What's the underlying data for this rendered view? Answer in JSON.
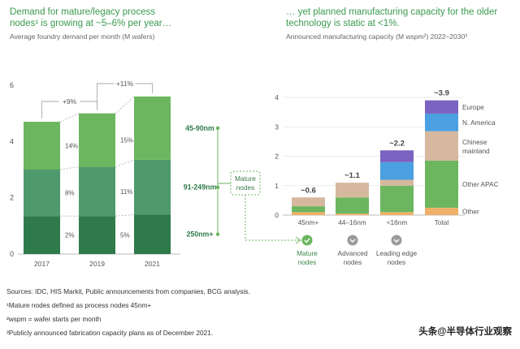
{
  "left_title_line1": "Demand for mature/legacy process",
  "left_title_line2": "nodes¹ is growing at ~5–6% per year…",
  "left_subtitle": "Average foundry demand per month (M wafers)",
  "right_title_line1": "… yet planned manufacturing capacity for the older",
  "right_title_line2": "technology is static at <1%.",
  "right_subtitle": "Announced manufacturing capacity (M wspm²) 2022–2030³",
  "callout_label": "Mature nodes",
  "footnotes": [
    "Sources: IDC, HIS Markit, Public announcements from companies, BCG analysis.",
    "¹Mature nodes defined as process nodes 45nm+",
    "²wspm = wafer starts per month",
    "³Publicly announced fabrication capacity plans as of December 2021."
  ],
  "watermark": "头条@半导体行业观察",
  "colors": {
    "dark_green": "#2f7a4b",
    "mid_green": "#4f9a6c",
    "light_green": "#6bb65f",
    "tan": "#d6b89f",
    "orange": "#f0b06a",
    "blue": "#4aa0e0",
    "purple": "#7a62c0",
    "title_green": "#3a9a4e"
  },
  "chart_data": [
    {
      "type": "bar",
      "stacked": true,
      "title": "Average foundry demand per month (M wafers)",
      "categories": [
        "2017",
        "2019",
        "2021"
      ],
      "series": [
        {
          "name": "250nm+",
          "values": [
            1.35,
            1.35,
            1.4
          ],
          "pct_labels": [
            "2%",
            "5%",
            ""
          ]
        },
        {
          "name": "91-249nm",
          "values": [
            1.65,
            1.75,
            1.95
          ],
          "pct_labels": [
            "8%",
            "11%",
            ""
          ]
        },
        {
          "name": "45-90nm",
          "values": [
            1.7,
            1.9,
            2.25
          ],
          "pct_labels": [
            "14%",
            "15%",
            ""
          ]
        }
      ],
      "growth_annotations": [
        {
          "from": "2017",
          "to": "2019",
          "label": "+9%"
        },
        {
          "from": "2019",
          "to": "2021",
          "label": "+11%"
        }
      ],
      "yticks": [
        0,
        2,
        4,
        6
      ],
      "ylim": [
        0,
        6
      ]
    },
    {
      "type": "bar",
      "stacked": true,
      "title": "Announced manufacturing capacity (M wspm²) 2022–2030³",
      "categories": [
        "45nm+",
        "44–16nm",
        "<16nm",
        "Total"
      ],
      "totals": [
        "~0.6",
        "~1.1",
        "~2.2",
        "~3.9"
      ],
      "series": [
        {
          "name": "Other",
          "values": [
            0.1,
            0.05,
            0.1,
            0.25
          ]
        },
        {
          "name": "Other APAC",
          "values": [
            0.2,
            0.55,
            0.9,
            1.6
          ]
        },
        {
          "name": "Chinese mainland",
          "values": [
            0.3,
            0.5,
            0.2,
            1.0
          ]
        },
        {
          "name": "N. America",
          "values": [
            0,
            0,
            0.6,
            0.6
          ]
        },
        {
          "name": "Europe",
          "values": [
            0,
            0,
            0.4,
            0.45
          ]
        }
      ],
      "node_groups": [
        {
          "name": "Mature nodes",
          "icon": "check"
        },
        {
          "name": "Advanced nodes",
          "icon": "chevron-down"
        },
        {
          "name": "Leading edge nodes",
          "icon": "chevron-down"
        }
      ],
      "yticks": [
        0,
        1,
        2,
        3,
        4
      ],
      "ylim": [
        0,
        4
      ]
    }
  ]
}
